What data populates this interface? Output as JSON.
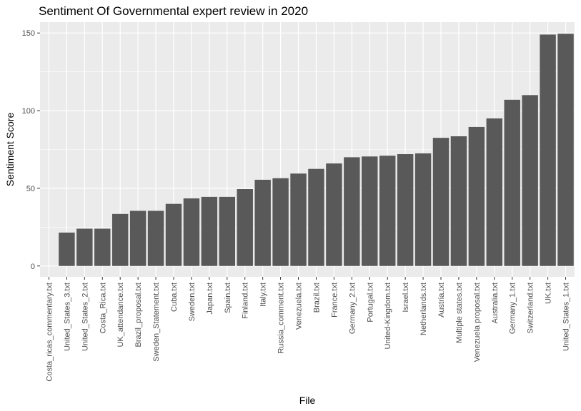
{
  "chart_data": {
    "type": "bar",
    "title": "Sentiment Of Governmental expert review in 2020",
    "xlabel": "File",
    "ylabel": "Sentiment Score",
    "ylim": [
      -7,
      157
    ],
    "yticks": [
      0,
      50,
      100,
      150
    ],
    "grid": true,
    "bar_color": "#595959",
    "panel_color": "#ebebeb",
    "grid_color": "#ffffff",
    "categories": [
      "Costa_ricas_commentary.txt",
      "United_States_3.txt",
      "United_States_2.txt",
      "Costa_Rica.txt",
      "UK_attendance.txt",
      "Brazil_proposal.txt",
      "Sweden_Statement.txt",
      "Cuba.txt",
      "Sweden.txt",
      "Japan.txt",
      "Spain.txt",
      "Finland.txt",
      "Italy.txt",
      "Russia_comment.txt",
      "Venezuela.txt",
      "Brazil.txt",
      "France.txt",
      "Germany_2.txt",
      "Portugal.txt",
      "United-Kingdom.txt",
      "Israel.txt",
      "Netherlands.txt",
      "Austria.txt",
      "Multiple states.txt",
      "Venezuela proposal.txt",
      "Australia.txt",
      "Germany_1.txt",
      "Switzerland.txt",
      "UK.txt",
      "United_States_1.txt"
    ],
    "values": [
      0,
      21.5,
      24,
      24,
      33.5,
      35.5,
      35.5,
      40,
      43.5,
      44.5,
      44.5,
      49.5,
      55.5,
      56.5,
      59.5,
      62.5,
      66,
      70,
      70.5,
      71,
      72,
      72.5,
      82.5,
      83.5,
      89.5,
      95,
      107,
      110,
      149,
      149.5
    ]
  }
}
